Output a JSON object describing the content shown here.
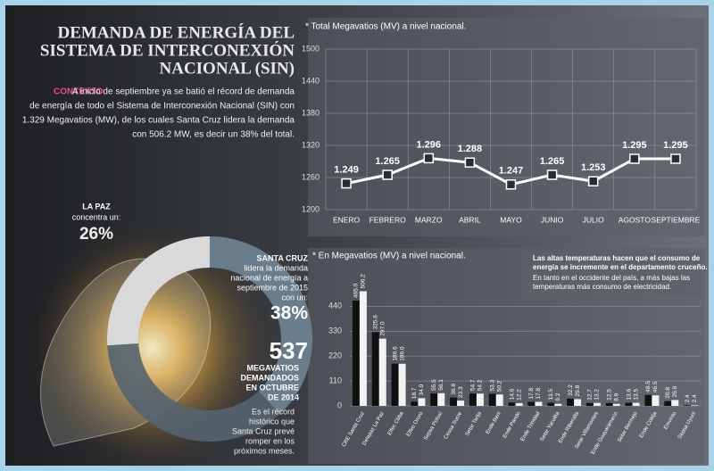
{
  "header": {
    "title_lines": [
      "DEMANDA DE ENERGÍA DEL",
      "SISTEMA DE INTERCONEXIÓN",
      "NACIONAL (SIN)"
    ]
  },
  "context": {
    "label": "CONTEXTO",
    "lines": [
      "A inicio de septiembre ya se batió el récord de demanda",
      "de energía de todo el Sistema de Interconexión Nacional (SIN) con",
      "1.329 Megavatios (MW), de los cuales Santa Cruz lidera la demanda",
      "con 506.2 MW, es decir un 38% del total."
    ]
  },
  "chart_data": [
    {
      "type": "line",
      "title": "* Total Megavatios (MV) a nivel nacional.",
      "categories": [
        "ENERO",
        "FEBRERO",
        "MARZO",
        "ABRIL",
        "MAYO",
        "JUNIO",
        "JULIO",
        "AGOSTO",
        "SEPTIEMBRE"
      ],
      "values": [
        1249,
        1265,
        1296,
        1288,
        1247,
        1265,
        1253,
        1295,
        1295
      ],
      "value_labels": [
        "1.249",
        "1.265",
        "1.296",
        "1.288",
        "1.247",
        "1.265",
        "1.253",
        "1.295",
        "1.295"
      ],
      "color": "#ffffff",
      "ylim": [
        1200,
        1500
      ],
      "yticks": [
        1200,
        1260,
        1320,
        1380,
        1440,
        1500
      ],
      "grid": true
    },
    {
      "type": "donut",
      "categories": [
        "LA PAZ",
        "SANTA CRUZ"
      ],
      "values": [
        26,
        38
      ],
      "value_labels": [
        "26%",
        "38%"
      ],
      "colors": [
        "#d9d9d9",
        "#6a7d8c"
      ],
      "category_notes": [
        [
          "concentra un:"
        ],
        [
          "lidera la demanda",
          "nacional de energía a",
          "septiembre de 2015",
          "con un:"
        ]
      ],
      "record_value": 537,
      "record_lines": [
        "MEGAVATIOS",
        "DEMANDADOS",
        "EN OCTUBRE",
        "DE 2014"
      ],
      "record_note": [
        "Es el récord",
        "histórico que",
        "Santa Cruz prevé",
        "romper en los",
        "próximos meses."
      ]
    },
    {
      "type": "grouped_bar",
      "title": "* En Megavatios (MV) a nivel nacional.",
      "categories": [
        "CRE Santa Cruz",
        "Delapaz La Paz",
        "Elfec Cbba",
        "Elfeo Oruro",
        "Sepsa Potosí",
        "Cessa Sucre",
        "Setar Tarija",
        "Ende Beni",
        "Ende Pando",
        "Ende Trinidad",
        "Setar Yacuiba",
        "Ende Riberalta",
        "Setar Villamontes",
        "Ende Guayaramerín",
        "Setar Bermejo",
        "Ende Cobija",
        "Emvinto",
        "Sepsa Uyuni"
      ],
      "series": [
        {
          "color": "#111111",
          "values": [
            465.0,
            325.6,
            186.6,
            18.7,
            55.5,
            36.8,
            54.7,
            53.3,
            14.6,
            17.8,
            13.5,
            32.2,
            12.7,
            12.5,
            13.6,
            48.5,
            20.8,
            2.4
          ],
          "value_labels": [
            "465.0",
            "325.6",
            "186.6",
            "18.7",
            "55.5",
            "36.8",
            "54.7",
            "53.3",
            "14.6",
            "17.8",
            "13.5",
            "32.2",
            "12.7",
            "12.5",
            "13.6",
            "48.5",
            "20.8",
            "2.4"
          ]
        },
        {
          "color": "#f2f2f2",
          "values": [
            506.2,
            297.0,
            186.0,
            34.0,
            56.1,
            23.3,
            54.2,
            50.2,
            12.2,
            17.8,
            9.2,
            29.8,
            13.2,
            8.9,
            13.5,
            46.5,
            25.9,
            2.4
          ],
          "value_labels": [
            "506.2",
            "297.0",
            "186.0",
            "34.0",
            "56.1",
            "23.3",
            "54.2",
            "50.2",
            "12.2",
            "17.8",
            "9.2",
            "29.8",
            "13.2",
            "8.9",
            "13.5",
            "46.5",
            "25.9",
            "2.4"
          ]
        }
      ],
      "ylim": [
        0,
        520
      ],
      "yticks": [
        0,
        110,
        220,
        330,
        440
      ],
      "grid": true,
      "note_bold": [
        "Las altas temperaturas hacen que el consumo de",
        "energía se incremente en el departamento cruceño."
      ],
      "note": [
        "En tanto en el occidente del país, a más bajas las",
        "temperaturas más consumo de electricidad."
      ]
    }
  ]
}
